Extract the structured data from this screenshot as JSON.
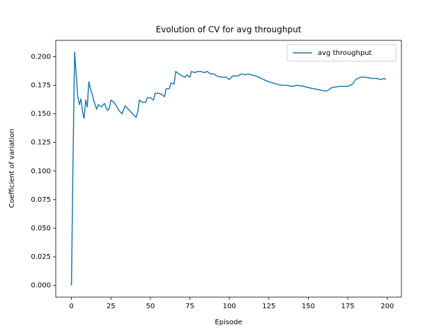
{
  "chart_data": {
    "type": "line",
    "title": "Evolution of CV for avg throughput",
    "x_label": "Episode",
    "y_label": "Coefficient of variation",
    "xlim": [
      -9.95,
      208.95
    ],
    "ylim": [
      -0.0102,
      0.2142
    ],
    "xticks": [
      0,
      25,
      50,
      75,
      100,
      125,
      150,
      175,
      200
    ],
    "yticks": [
      {
        "value": 0,
        "label": "0.000"
      },
      {
        "value": 0.025,
        "label": "0.025"
      },
      {
        "value": 0.05,
        "label": "0.050"
      },
      {
        "value": 0.075,
        "label": "0.075"
      },
      {
        "value": 0.1,
        "label": "0.100"
      },
      {
        "value": 0.125,
        "label": "0.125"
      },
      {
        "value": 0.15,
        "label": "0.150"
      },
      {
        "value": 0.175,
        "label": "0.175"
      },
      {
        "value": 0.2,
        "label": "0.200"
      }
    ],
    "legend": "upper right",
    "x": [
      0,
      1,
      2,
      3,
      4,
      5,
      6,
      7,
      8,
      9,
      10,
      11,
      12,
      13,
      14,
      15,
      16,
      17,
      18,
      19,
      20,
      21,
      22,
      23,
      24,
      25,
      27,
      28,
      30,
      32,
      34,
      36,
      38,
      40,
      41,
      42,
      43,
      45,
      47,
      48,
      50,
      52,
      53,
      55,
      57,
      59,
      60,
      62,
      63,
      65,
      66,
      68,
      70,
      72,
      73,
      75,
      76,
      78,
      80,
      82,
      84,
      86,
      88,
      90,
      92,
      95,
      98,
      100,
      102,
      105,
      108,
      110,
      112,
      114,
      117,
      120,
      125,
      130,
      133,
      136,
      140,
      143,
      147,
      150,
      153,
      157,
      160,
      162,
      165,
      170,
      175,
      178,
      180,
      183,
      186,
      190,
      193,
      196,
      198,
      199
    ],
    "series": [
      {
        "name": "avg throughput",
        "color": "#1f77b4",
        "values": [
          0.0,
          0.11,
          0.204,
          0.185,
          0.165,
          0.158,
          0.163,
          0.152,
          0.146,
          0.162,
          0.156,
          0.178,
          0.172,
          0.168,
          0.162,
          0.158,
          0.154,
          0.158,
          0.157,
          0.156,
          0.158,
          0.159,
          0.155,
          0.153,
          0.155,
          0.162,
          0.16,
          0.158,
          0.153,
          0.15,
          0.157,
          0.154,
          0.151,
          0.148,
          0.147,
          0.152,
          0.162,
          0.16,
          0.16,
          0.164,
          0.164,
          0.162,
          0.168,
          0.168,
          0.167,
          0.165,
          0.172,
          0.172,
          0.177,
          0.176,
          0.187,
          0.185,
          0.183,
          0.182,
          0.184,
          0.182,
          0.187,
          0.186,
          0.187,
          0.187,
          0.186,
          0.187,
          0.185,
          0.185,
          0.183,
          0.182,
          0.182,
          0.18,
          0.183,
          0.183,
          0.185,
          0.184,
          0.185,
          0.184,
          0.183,
          0.181,
          0.178,
          0.176,
          0.175,
          0.175,
          0.174,
          0.175,
          0.174,
          0.173,
          0.172,
          0.171,
          0.17,
          0.17,
          0.173,
          0.174,
          0.174,
          0.176,
          0.18,
          0.182,
          0.182,
          0.181,
          0.181,
          0.18,
          0.181,
          0.18
        ]
      }
    ]
  }
}
